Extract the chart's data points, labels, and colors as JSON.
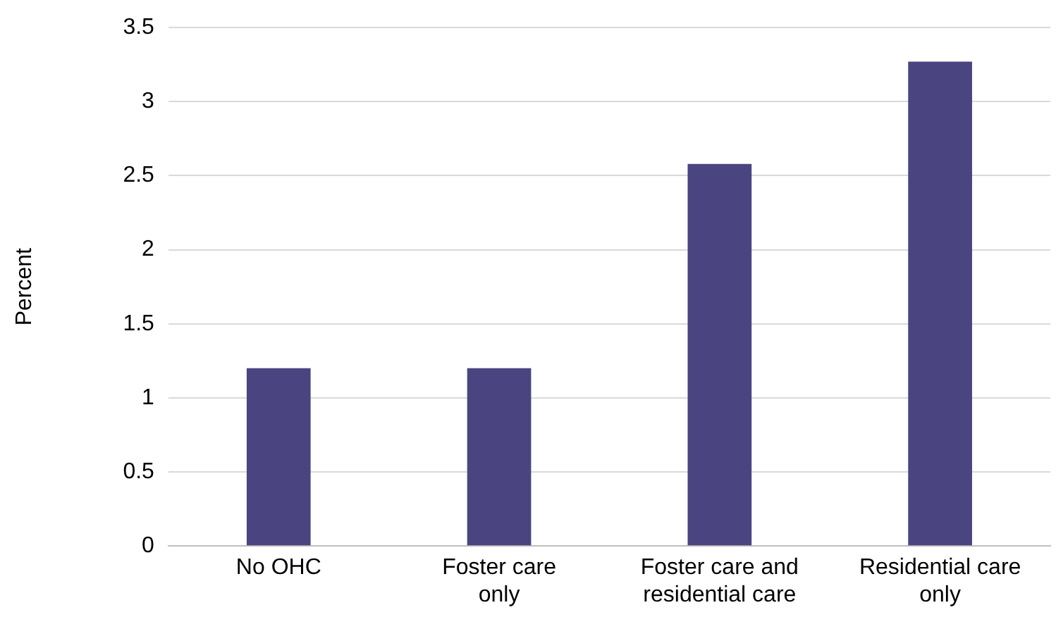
{
  "chart_data": {
    "type": "bar",
    "ylabel": "Percent",
    "categories": [
      "No OHC",
      "Foster care only",
      "Foster care and residential care",
      "Residential care only"
    ],
    "values": [
      1.2,
      1.2,
      2.58,
      3.27
    ],
    "color": "#4a4580",
    "ylim": [
      0,
      3.5
    ],
    "yticks": [
      0,
      0.5,
      1,
      1.5,
      2,
      2.5,
      3,
      3.5
    ],
    "grid": "y",
    "legend": false
  }
}
